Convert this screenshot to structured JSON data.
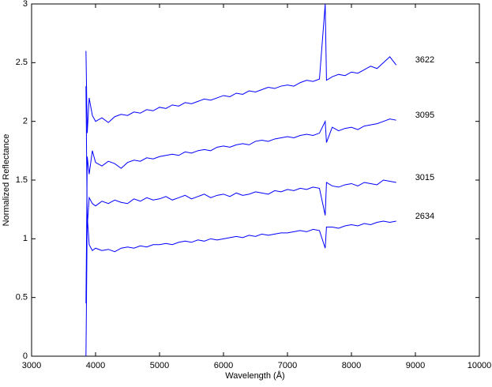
{
  "chart_data": {
    "type": "line",
    "x_label": "Wavelength (Å)",
    "y_label": "Normalized Reflectance",
    "x": [
      3850,
      3870,
      3900,
      3950,
      4000,
      4100,
      4200,
      4300,
      4400,
      4500,
      4600,
      4700,
      4800,
      4900,
      5000,
      5100,
      5200,
      5300,
      5400,
      5500,
      5600,
      5700,
      5800,
      5900,
      6000,
      6100,
      6200,
      6300,
      6400,
      6500,
      6600,
      6700,
      6800,
      6900,
      7000,
      7100,
      7200,
      7300,
      7400,
      7500,
      7590,
      7610,
      7700,
      7800,
      7900,
      8000,
      8100,
      8200,
      8300,
      8400,
      8500,
      8600,
      8700
    ],
    "series": [
      {
        "name": "3622",
        "color": "#0000ff",
        "values": [
          2.6,
          1.9,
          2.2,
          2.05,
          2.0,
          2.03,
          1.99,
          2.04,
          2.06,
          2.05,
          2.08,
          2.07,
          2.1,
          2.09,
          2.12,
          2.11,
          2.14,
          2.13,
          2.16,
          2.15,
          2.17,
          2.19,
          2.18,
          2.2,
          2.22,
          2.21,
          2.24,
          2.23,
          2.26,
          2.25,
          2.27,
          2.29,
          2.28,
          2.3,
          2.31,
          2.3,
          2.33,
          2.35,
          2.34,
          2.36,
          3.0,
          2.35,
          2.38,
          2.4,
          2.39,
          2.42,
          2.41,
          2.44,
          2.47,
          2.45,
          2.5,
          2.55,
          2.48
        ]
      },
      {
        "name": "3095",
        "color": "#0000ff",
        "values": [
          0.45,
          1.7,
          1.55,
          1.75,
          1.65,
          1.62,
          1.66,
          1.64,
          1.6,
          1.65,
          1.67,
          1.66,
          1.69,
          1.68,
          1.7,
          1.71,
          1.72,
          1.71,
          1.74,
          1.73,
          1.75,
          1.76,
          1.75,
          1.78,
          1.79,
          1.78,
          1.8,
          1.81,
          1.8,
          1.83,
          1.84,
          1.83,
          1.85,
          1.86,
          1.87,
          1.86,
          1.88,
          1.89,
          1.88,
          1.9,
          2.0,
          1.82,
          1.95,
          1.92,
          1.94,
          1.95,
          1.93,
          1.96,
          1.97,
          1.98,
          2.0,
          2.02,
          2.01
        ]
      },
      {
        "name": "3015",
        "color": "#0000ff",
        "values": [
          2.3,
          1.1,
          1.35,
          1.3,
          1.28,
          1.32,
          1.3,
          1.33,
          1.31,
          1.3,
          1.34,
          1.32,
          1.35,
          1.33,
          1.34,
          1.36,
          1.33,
          1.35,
          1.37,
          1.34,
          1.36,
          1.38,
          1.35,
          1.37,
          1.38,
          1.36,
          1.39,
          1.37,
          1.38,
          1.4,
          1.39,
          1.38,
          1.41,
          1.4,
          1.42,
          1.41,
          1.43,
          1.42,
          1.44,
          1.43,
          1.2,
          1.48,
          1.45,
          1.44,
          1.46,
          1.47,
          1.45,
          1.48,
          1.47,
          1.46,
          1.5,
          1.49,
          1.48
        ]
      },
      {
        "name": "2634",
        "color": "#0000ff",
        "values": [
          0,
          1.2,
          0.95,
          0.9,
          0.92,
          0.9,
          0.91,
          0.89,
          0.92,
          0.93,
          0.92,
          0.94,
          0.93,
          0.95,
          0.95,
          0.96,
          0.95,
          0.97,
          0.98,
          0.97,
          0.99,
          0.98,
          1.0,
          0.99,
          1.0,
          1.01,
          1.02,
          1.01,
          1.03,
          1.02,
          1.04,
          1.03,
          1.04,
          1.05,
          1.05,
          1.06,
          1.07,
          1.06,
          1.08,
          1.07,
          0.92,
          1.1,
          1.1,
          1.09,
          1.11,
          1.12,
          1.11,
          1.13,
          1.12,
          1.14,
          1.15,
          1.14,
          1.15
        ]
      }
    ],
    "xlim": [
      3000,
      10000
    ],
    "xticks": [
      3000,
      4000,
      5000,
      6000,
      7000,
      8000,
      9000,
      10000
    ],
    "ylim": [
      0,
      3
    ],
    "yticks": [
      0,
      0.5,
      1,
      1.5,
      2,
      2.5,
      3
    ]
  }
}
